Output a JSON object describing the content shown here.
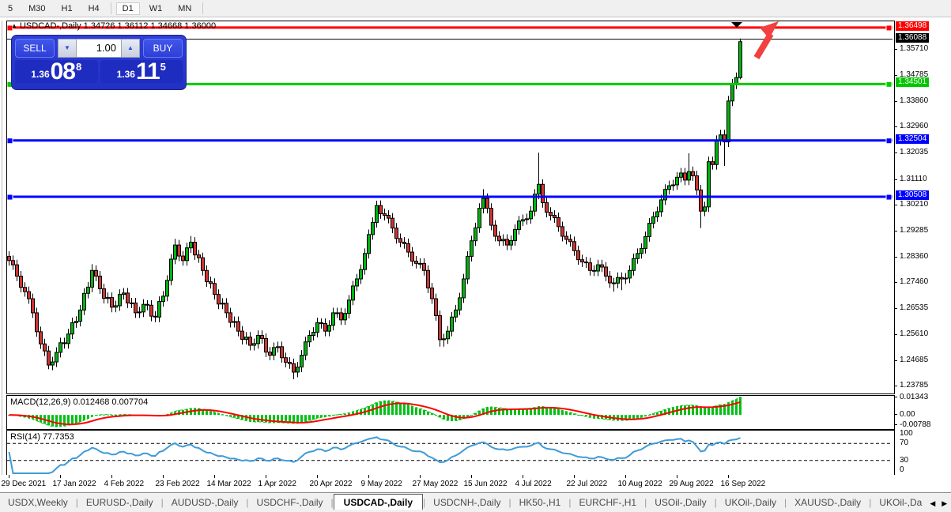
{
  "toolbar": {
    "timeframes": [
      "5",
      "M30",
      "H1",
      "H4",
      "D1",
      "W1",
      "MN"
    ],
    "selected": "D1"
  },
  "chart": {
    "title": "USDCAD-,Daily  1.34726 1.36112 1.34668 1.36000",
    "object_marker": "▲"
  },
  "trade_panel": {
    "sell_label": "SELL",
    "buy_label": "BUY",
    "volume": "1.00",
    "sell_price": {
      "prefix": "1.36",
      "big": "08",
      "sup": "8",
      "full": "1.36088"
    },
    "buy_price": {
      "prefix": "1.36",
      "big": "11",
      "sup": "5",
      "full": "1.36115"
    }
  },
  "price_axis": {
    "ticks": [
      1.3571,
      1.34785,
      1.3386,
      1.3296,
      1.32035,
      1.3111,
      1.3021,
      1.29285,
      1.2836,
      1.2746,
      1.26535,
      1.2561,
      1.24685,
      1.23785
    ],
    "bid_chip": {
      "value": 1.36088,
      "label": "1.36088",
      "bg": "#000000"
    }
  },
  "chart_objects": {
    "hlines": [
      {
        "name": "resistance-line",
        "price": 1.36498,
        "label": "1.36498",
        "color": "#ff0000",
        "width": 3
      },
      {
        "name": "support-line-green",
        "price": 1.34501,
        "label": "1.34501",
        "color": "#00cc00",
        "width": 3
      },
      {
        "name": "support-line-blue-1",
        "price": 1.32504,
        "label": "1.32504",
        "color": "#0000ff",
        "width": 3
      },
      {
        "name": "support-line-blue-2",
        "price": 1.30508,
        "label": "1.30508",
        "color": "#0000ff",
        "width": 3
      }
    ],
    "bid_line": {
      "price": 1.36088,
      "color": "#000000"
    }
  },
  "indicators": {
    "macd": {
      "label": "MACD(12,26,9) 0.012468 0.007704",
      "params": [
        12,
        26,
        9
      ],
      "axis_labels": [
        {
          "text": "0.01343",
          "value": 0.01343
        },
        {
          "text": "0.00",
          "value": 0.0
        },
        {
          "text": "-0.00788",
          "value": -0.00788
        }
      ],
      "range": {
        "top": 0.0145,
        "bottom": -0.0095
      }
    },
    "rsi": {
      "label": "RSI(14) 77.7353",
      "period": 14,
      "axis_labels": [
        {
          "text": "100",
          "value": 100
        },
        {
          "text": "70",
          "value": 70
        },
        {
          "text": "30",
          "value": 30
        },
        {
          "text": "0",
          "value": 0
        }
      ],
      "levels": [
        70,
        30
      ]
    }
  },
  "time_axis": {
    "labels": [
      "29 Dec 2021",
      "17 Jan 2022",
      "4 Feb 2022",
      "23 Feb 2022",
      "14 Mar 2022",
      "1 Apr 2022",
      "20 Apr 2022",
      "9 May 2022",
      "27 May 2022",
      "15 Jun 2022",
      "4 Jul 2022",
      "22 Jul 2022",
      "10 Aug 2022",
      "29 Aug 2022",
      "16 Sep 2022"
    ],
    "bar_step": 13
  },
  "tabs": {
    "items": [
      "USDX,Weekly",
      "EURUSD-,Daily",
      "AUDUSD-,Daily",
      "USDCHF-,Daily",
      "USDCAD-,Daily",
      "USDCNH-,Daily",
      "HK50-,H1",
      "EURCHF-,H1",
      "USOil-,Daily",
      "UKOil-,Daily",
      "XAUUSD-,Daily",
      "UKOil-,Da"
    ],
    "active": "USDCAD-,Daily",
    "scroll_left": "◀",
    "scroll_right": "▶"
  },
  "colors": {
    "candle_up": "#00b312",
    "candle_down": "#ce3434",
    "candle_border": "#000000",
    "macd_hist": "#00c014",
    "macd_signal": "#ff0000",
    "rsi_line": "#3e9bd8",
    "chip_red": "#ff0000",
    "chip_green": "#00c800",
    "chip_blue": "#0000ff",
    "arrow_annotation": "#f24040"
  },
  "chart_data": {
    "type": "candlestick",
    "symbol": "USDCAD-",
    "timeframe": "Daily",
    "price_range": {
      "top": 1.3672,
      "bottom": 1.236
    },
    "last_candle_ohlc": {
      "open": 1.34726,
      "high": 1.36112,
      "low": 1.34668,
      "close": 1.36
    },
    "candles": [
      [
        1.284,
        1.2858,
        1.2807,
        1.2825
      ],
      [
        1.2825,
        1.2843,
        1.2792,
        1.281
      ],
      [
        1.281,
        1.2828,
        1.2752,
        1.277
      ],
      [
        1.277,
        1.2788,
        1.2712,
        1.273
      ],
      [
        1.273,
        1.2748,
        1.2697,
        1.2715
      ],
      [
        1.2715,
        1.2733,
        1.2672,
        1.269
      ],
      [
        1.269,
        1.2708,
        1.2622,
        1.264
      ],
      [
        1.264,
        1.2658,
        1.2555,
        1.2573
      ],
      [
        1.2573,
        1.2591,
        1.2512,
        1.253
      ],
      [
        1.253,
        1.2548,
        1.2487,
        1.2505
      ],
      [
        1.2505,
        1.2523,
        1.244,
        1.2455
      ],
      [
        1.2455,
        1.2484,
        1.2437,
        1.2466
      ],
      [
        1.2466,
        1.2518,
        1.2448,
        1.25
      ],
      [
        1.25,
        1.2552,
        1.2482,
        1.2534
      ],
      [
        1.2534,
        1.2552,
        1.2513,
        1.2531
      ],
      [
        1.2531,
        1.2583,
        1.2513,
        1.2565
      ],
      [
        1.2565,
        1.2623,
        1.2547,
        1.2605
      ],
      [
        1.2605,
        1.2628,
        1.2587,
        1.261
      ],
      [
        1.261,
        1.2668,
        1.2592,
        1.265
      ],
      [
        1.265,
        1.2727,
        1.2632,
        1.2709
      ],
      [
        1.2709,
        1.2749,
        1.2691,
        1.2731
      ],
      [
        1.2731,
        1.2812,
        1.2713,
        1.279
      ],
      [
        1.279,
        1.2808,
        1.2752,
        1.277
      ],
      [
        1.277,
        1.2788,
        1.2707,
        1.2725
      ],
      [
        1.2725,
        1.2743,
        1.2673,
        1.2691
      ],
      [
        1.2691,
        1.2712,
        1.2673,
        1.2694
      ],
      [
        1.2694,
        1.2712,
        1.2642,
        1.266
      ],
      [
        1.266,
        1.2683,
        1.2642,
        1.2665
      ],
      [
        1.2665,
        1.2723,
        1.2647,
        1.2705
      ],
      [
        1.2705,
        1.2728,
        1.2687,
        1.271
      ],
      [
        1.271,
        1.2728,
        1.2657,
        1.2675
      ],
      [
        1.2675,
        1.2693,
        1.2657,
        1.2675
      ],
      [
        1.2675,
        1.2693,
        1.2622,
        1.264
      ],
      [
        1.264,
        1.2661,
        1.2622,
        1.2643
      ],
      [
        1.2643,
        1.2688,
        1.2625,
        1.267
      ],
      [
        1.267,
        1.2685,
        1.2649,
        1.2667
      ],
      [
        1.2667,
        1.2685,
        1.261,
        1.2628
      ],
      [
        1.2628,
        1.2646,
        1.2607,
        1.2625
      ],
      [
        1.2625,
        1.2698,
        1.2607,
        1.268
      ],
      [
        1.268,
        1.2717,
        1.2662,
        1.2699
      ],
      [
        1.2699,
        1.2773,
        1.2681,
        1.2755
      ],
      [
        1.2755,
        1.2848,
        1.2737,
        1.283
      ],
      [
        1.283,
        1.2902,
        1.2812,
        1.288
      ],
      [
        1.288,
        1.2898,
        1.2823,
        1.2841
      ],
      [
        1.2841,
        1.2859,
        1.2807,
        1.2825
      ],
      [
        1.2825,
        1.2888,
        1.2807,
        1.287
      ],
      [
        1.287,
        1.2912,
        1.2852,
        1.289
      ],
      [
        1.289,
        1.2908,
        1.2827,
        1.2845
      ],
      [
        1.2845,
        1.2863,
        1.2817,
        1.2835
      ],
      [
        1.2835,
        1.2853,
        1.2772,
        1.279
      ],
      [
        1.279,
        1.2808,
        1.2732,
        1.275
      ],
      [
        1.275,
        1.2768,
        1.2726,
        1.2744
      ],
      [
        1.2744,
        1.2762,
        1.2687,
        1.2705
      ],
      [
        1.2705,
        1.2723,
        1.2653,
        1.2671
      ],
      [
        1.2671,
        1.2692,
        1.2653,
        1.2674
      ],
      [
        1.2674,
        1.2692,
        1.2622,
        1.264
      ],
      [
        1.264,
        1.2658,
        1.2588,
        1.2606
      ],
      [
        1.2606,
        1.2627,
        1.2588,
        1.2609
      ],
      [
        1.2609,
        1.2627,
        1.2557,
        1.2575
      ],
      [
        1.2575,
        1.2593,
        1.2528,
        1.2546
      ],
      [
        1.2546,
        1.2572,
        1.2528,
        1.2554
      ],
      [
        1.2554,
        1.2572,
        1.2507,
        1.2525
      ],
      [
        1.2525,
        1.2549,
        1.2507,
        1.2531
      ],
      [
        1.2531,
        1.2578,
        1.2513,
        1.256
      ],
      [
        1.256,
        1.2578,
        1.2531,
        1.2549
      ],
      [
        1.2549,
        1.2567,
        1.2483,
        1.2501
      ],
      [
        1.2501,
        1.2519,
        1.2472,
        1.249
      ],
      [
        1.249,
        1.2535,
        1.2472,
        1.2517
      ],
      [
        1.2517,
        1.2538,
        1.2499,
        1.252
      ],
      [
        1.252,
        1.2538,
        1.2463,
        1.2481
      ],
      [
        1.2481,
        1.2499,
        1.2447,
        1.2465
      ],
      [
        1.2465,
        1.2483,
        1.2442,
        1.246
      ],
      [
        1.246,
        1.2478,
        1.2405,
        1.243
      ],
      [
        1.243,
        1.2466,
        1.2412,
        1.2448
      ],
      [
        1.2448,
        1.2508,
        1.243,
        1.249
      ],
      [
        1.249,
        1.2555,
        1.2472,
        1.2537
      ],
      [
        1.2537,
        1.2578,
        1.2519,
        1.256
      ],
      [
        1.256,
        1.2589,
        1.2542,
        1.2571
      ],
      [
        1.2571,
        1.2623,
        1.2553,
        1.2605
      ],
      [
        1.2605,
        1.262,
        1.2584,
        1.2602
      ],
      [
        1.2602,
        1.262,
        1.2557,
        1.2575
      ],
      [
        1.2575,
        1.2614,
        1.2557,
        1.2596
      ],
      [
        1.2596,
        1.2658,
        1.2578,
        1.264
      ],
      [
        1.264,
        1.2658,
        1.2622,
        1.264
      ],
      [
        1.264,
        1.2658,
        1.2597,
        1.2615
      ],
      [
        1.2615,
        1.2656,
        1.2597,
        1.2638
      ],
      [
        1.2638,
        1.2703,
        1.262,
        1.2685
      ],
      [
        1.2685,
        1.2753,
        1.2667,
        1.2735
      ],
      [
        1.2735,
        1.2778,
        1.2717,
        1.276
      ],
      [
        1.276,
        1.2811,
        1.2742,
        1.2793
      ],
      [
        1.2793,
        1.2868,
        1.2775,
        1.285
      ],
      [
        1.285,
        1.2935,
        1.2832,
        1.2917
      ],
      [
        1.2917,
        1.2978,
        1.2899,
        1.296
      ],
      [
        1.296,
        1.3037,
        1.2942,
        1.302
      ],
      [
        1.302,
        1.3038,
        1.2973,
        1.2991
      ],
      [
        1.2991,
        1.3009,
        1.2967,
        1.2985
      ],
      [
        1.2985,
        1.3003,
        1.2957,
        1.2975
      ],
      [
        1.2975,
        1.2993,
        1.2922,
        1.294
      ],
      [
        1.294,
        1.2958,
        1.2885,
        1.2903
      ],
      [
        1.2903,
        1.2921,
        1.2872,
        1.289
      ],
      [
        1.289,
        1.2908,
        1.2867,
        1.2885
      ],
      [
        1.2885,
        1.2903,
        1.2837,
        1.2855
      ],
      [
        1.2855,
        1.2873,
        1.2805,
        1.2823
      ],
      [
        1.2823,
        1.2841,
        1.2797,
        1.2815
      ],
      [
        1.2815,
        1.2833,
        1.2797,
        1.2815
      ],
      [
        1.2815,
        1.2833,
        1.2772,
        1.279
      ],
      [
        1.279,
        1.2808,
        1.271,
        1.2728
      ],
      [
        1.2728,
        1.2746,
        1.2672,
        1.269
      ],
      [
        1.269,
        1.2708,
        1.2612,
        1.263
      ],
      [
        1.263,
        1.2648,
        1.252,
        1.2545
      ],
      [
        1.2545,
        1.2566,
        1.252,
        1.2548
      ],
      [
        1.2548,
        1.2593,
        1.253,
        1.2575
      ],
      [
        1.2575,
        1.2643,
        1.2557,
        1.2625
      ],
      [
        1.2625,
        1.2668,
        1.2607,
        1.265
      ],
      [
        1.265,
        1.2711,
        1.2632,
        1.2693
      ],
      [
        1.2693,
        1.2778,
        1.2675,
        1.276
      ],
      [
        1.276,
        1.2858,
        1.2742,
        1.284
      ],
      [
        1.284,
        1.2913,
        1.2822,
        1.2895
      ],
      [
        1.2895,
        1.2959,
        1.2877,
        1.2941
      ],
      [
        1.2941,
        1.3028,
        1.2923,
        1.301
      ],
      [
        1.301,
        1.3078,
        1.2992,
        1.3045
      ],
      [
        1.3045,
        1.3063,
        1.2992,
        1.301
      ],
      [
        1.301,
        1.3028,
        1.2932,
        1.295
      ],
      [
        1.295,
        1.2968,
        1.2893,
        1.2911
      ],
      [
        1.2911,
        1.2929,
        1.2877,
        1.2895
      ],
      [
        1.2895,
        1.2918,
        1.2877,
        1.29
      ],
      [
        1.29,
        1.2918,
        1.2862,
        1.288
      ],
      [
        1.288,
        1.2914,
        1.2862,
        1.2896
      ],
      [
        1.2896,
        1.2953,
        1.2878,
        1.2935
      ],
      [
        1.2935,
        1.2983,
        1.2917,
        1.2965
      ],
      [
        1.2965,
        1.2988,
        1.2947,
        1.297
      ],
      [
        1.297,
        1.2991,
        1.2952,
        1.2973
      ],
      [
        1.2973,
        1.3018,
        1.2955,
        1.3
      ],
      [
        1.3,
        1.3078,
        1.2982,
        1.306
      ],
      [
        1.306,
        1.3207,
        1.3042,
        1.3095
      ],
      [
        1.3095,
        1.3113,
        1.3012,
        1.303
      ],
      [
        1.303,
        1.3048,
        1.2978,
        1.2996
      ],
      [
        1.2996,
        1.3014,
        1.2967,
        1.2985
      ],
      [
        1.2985,
        1.3003,
        1.2959,
        1.2977
      ],
      [
        1.2977,
        1.2995,
        1.2927,
        1.2945
      ],
      [
        1.2945,
        1.2963,
        1.2893,
        1.2911
      ],
      [
        1.2911,
        1.2929,
        1.2882,
        1.29
      ],
      [
        1.29,
        1.2918,
        1.2874,
        1.2892
      ],
      [
        1.2892,
        1.291,
        1.2842,
        1.286
      ],
      [
        1.286,
        1.2878,
        1.281,
        1.2828
      ],
      [
        1.2828,
        1.2846,
        1.2802,
        1.282
      ],
      [
        1.282,
        1.2838,
        1.2799,
        1.2817
      ],
      [
        1.2817,
        1.2835,
        1.2772,
        1.279
      ],
      [
        1.279,
        1.2808,
        1.277,
        1.2788
      ],
      [
        1.2788,
        1.2828,
        1.277,
        1.281
      ],
      [
        1.281,
        1.2828,
        1.2784,
        1.2802
      ],
      [
        1.2802,
        1.282,
        1.2752,
        1.277
      ],
      [
        1.277,
        1.2788,
        1.2728,
        1.2746
      ],
      [
        1.2746,
        1.2764,
        1.2715,
        1.2745
      ],
      [
        1.2745,
        1.2783,
        1.2727,
        1.2765
      ],
      [
        1.2765,
        1.2783,
        1.272,
        1.276
      ],
      [
        1.276,
        1.2781,
        1.2742,
        1.2763
      ],
      [
        1.2763,
        1.2808,
        1.2745,
        1.279
      ],
      [
        1.279,
        1.285,
        1.2772,
        1.2832
      ],
      [
        1.2832,
        1.2868,
        1.2814,
        1.285
      ],
      [
        1.285,
        1.2886,
        1.2832,
        1.2868
      ],
      [
        1.2868,
        1.2928,
        1.285,
        1.291
      ],
      [
        1.291,
        1.2975,
        1.2892,
        1.2957
      ],
      [
        1.2957,
        1.2998,
        1.2939,
        1.298
      ],
      [
        1.298,
        1.3016,
        1.2962,
        1.2998
      ],
      [
        1.2998,
        1.3058,
        1.298,
        1.304
      ],
      [
        1.304,
        1.3095,
        1.3022,
        1.3077
      ],
      [
        1.3077,
        1.3108,
        1.3059,
        1.309
      ],
      [
        1.309,
        1.3111,
        1.3072,
        1.3093
      ],
      [
        1.3093,
        1.3138,
        1.3075,
        1.312
      ],
      [
        1.312,
        1.3153,
        1.3102,
        1.3135
      ],
      [
        1.3135,
        1.3153,
        1.3092,
        1.311
      ],
      [
        1.311,
        1.3205,
        1.3092,
        1.314
      ],
      [
        1.314,
        1.3158,
        1.3107,
        1.3125
      ],
      [
        1.3125,
        1.3143,
        1.3057,
        1.3075
      ],
      [
        1.3075,
        1.3093,
        1.294,
        1.3
      ],
      [
        1.3,
        1.3033,
        1.2982,
        1.3015
      ],
      [
        1.3015,
        1.3193,
        1.2997,
        1.3175
      ],
      [
        1.3175,
        1.3193,
        1.3147,
        1.3165
      ],
      [
        1.3165,
        1.3268,
        1.3147,
        1.325
      ],
      [
        1.325,
        1.3288,
        1.3232,
        1.327
      ],
      [
        1.327,
        1.3288,
        1.316,
        1.3245
      ],
      [
        1.3245,
        1.3408,
        1.3227,
        1.339
      ],
      [
        1.339,
        1.3468,
        1.3372,
        1.345
      ],
      [
        1.345,
        1.3491,
        1.3432,
        1.3473
      ],
      [
        1.34726,
        1.36112,
        1.34668,
        1.36
      ]
    ]
  }
}
